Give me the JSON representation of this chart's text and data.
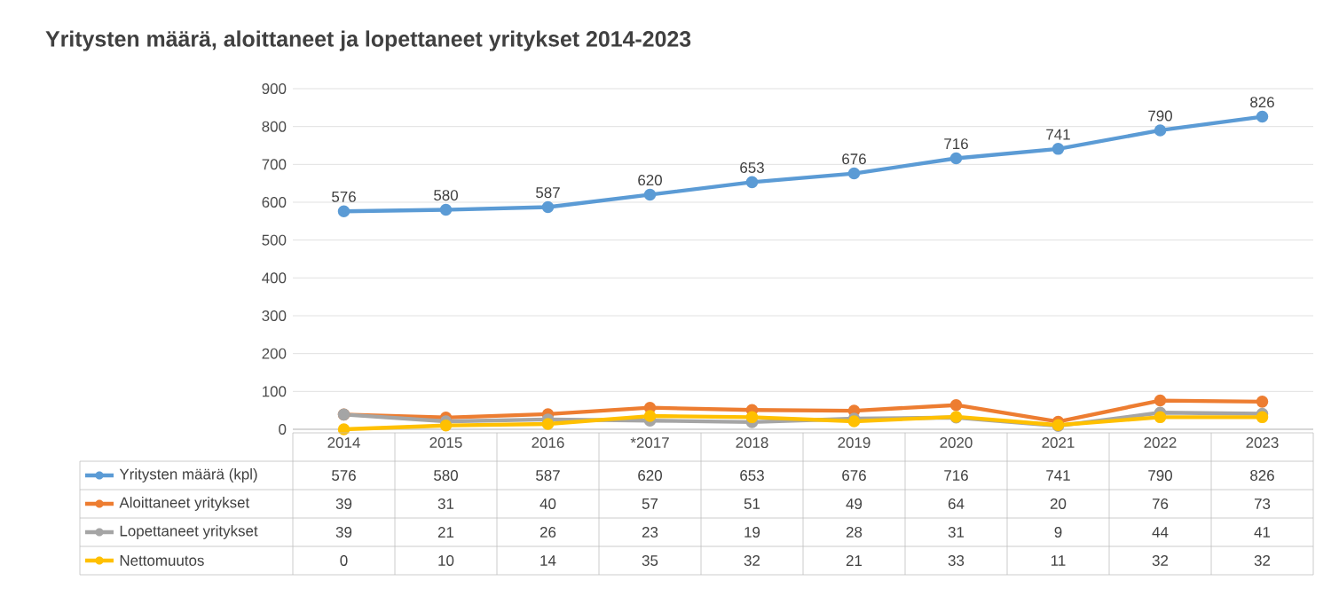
{
  "chart_data": {
    "type": "line",
    "title": "Yritysten määrä, aloittaneet ja lopettaneet yritykset 2014-2023",
    "categories": [
      "2014",
      "2015",
      "2016",
      "*2017",
      "2018",
      "2019",
      "2020",
      "2021",
      "2022",
      "2023"
    ],
    "series": [
      {
        "name": "Yritysten määrä (kpl)",
        "color": "#5b9bd5",
        "values": [
          576,
          580,
          587,
          620,
          653,
          676,
          716,
          741,
          790,
          826
        ]
      },
      {
        "name": "Aloittaneet yritykset",
        "color": "#ed7d31",
        "values": [
          39,
          31,
          40,
          57,
          51,
          49,
          64,
          20,
          76,
          73
        ]
      },
      {
        "name": "Lopettaneet yritykset",
        "color": "#a5a5a5",
        "values": [
          39,
          21,
          26,
          23,
          19,
          28,
          31,
          9,
          44,
          41
        ]
      },
      {
        "name": "Nettomuutos",
        "color": "#ffc000",
        "values": [
          0,
          10,
          14,
          35,
          32,
          21,
          33,
          11,
          32,
          32
        ]
      }
    ],
    "ylim": [
      0,
      900
    ],
    "yticks": [
      0,
      100,
      200,
      300,
      400,
      500,
      600,
      700,
      800,
      900
    ],
    "annotations": [
      {
        "text": "576",
        "x": "2014",
        "y": 576
      },
      {
        "text": "580",
        "x": "2015",
        "y": 580
      },
      {
        "text": "587",
        "x": "2016",
        "y": 587
      },
      {
        "text": "620",
        "x": "*2017",
        "y": 620
      },
      {
        "text": "653",
        "x": "2018",
        "y": 653
      },
      {
        "text": "676",
        "x": "2019",
        "y": 676
      },
      {
        "text": "716",
        "x": "2020",
        "y": 716
      },
      {
        "text": "741",
        "x": "2021",
        "y": 741
      },
      {
        "text": "790",
        "x": "2022",
        "y": 790
      },
      {
        "text": "826",
        "x": "2023",
        "y": 826
      }
    ],
    "grid": "y",
    "legend": "bottom",
    "marker": "circle",
    "line_style": "solid",
    "data_labels": true
  }
}
